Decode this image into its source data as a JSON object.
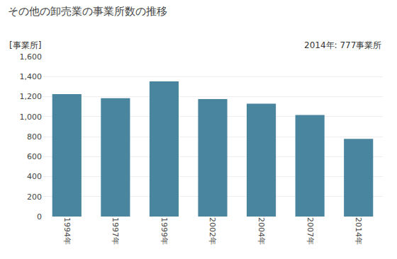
{
  "chart_data": {
    "type": "bar",
    "title": "その他の卸売業の事業所数の推移",
    "ylabel": "[事業所]",
    "annotation": "2014年: 777事業所",
    "categories": [
      "1994年",
      "1997年",
      "1999年",
      "2002年",
      "2004年",
      "2007年",
      "2014年"
    ],
    "values": [
      1224,
      1184,
      1352,
      1176,
      1130,
      1016,
      777
    ],
    "color": "#4a85a0",
    "ylim": [
      0,
      1600
    ],
    "yticks": [
      0,
      200,
      400,
      600,
      800,
      {
        "value": 1000,
        "label": "1,000"
      },
      {
        "value": 1200,
        "label": "1,200"
      },
      {
        "value": 1400,
        "label": "1,400"
      },
      {
        "value": 1600,
        "label": "1,600"
      }
    ],
    "grid": true
  }
}
